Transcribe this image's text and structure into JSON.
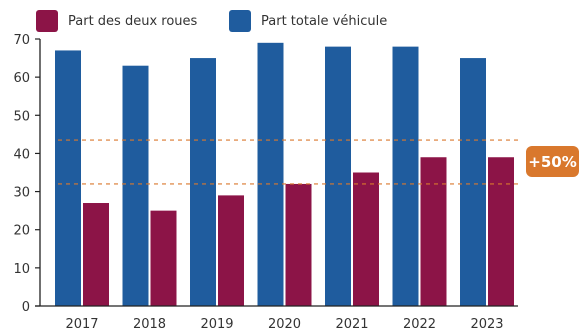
{
  "colors": {
    "two_wheel": "#8C1447",
    "vehicle": "#1F5C9E",
    "annotation": "#D9782D",
    "axis": "#222222"
  },
  "chart_data": {
    "type": "bar",
    "categories": [
      "2017",
      "2018",
      "2019",
      "2020",
      "2021",
      "2022",
      "2023"
    ],
    "series": [
      {
        "name": "Part des deux roues",
        "values": [
          27,
          25,
          29,
          32,
          35,
          39,
          39
        ]
      },
      {
        "name": "Part totale véhicule",
        "values": [
          67,
          63,
          65,
          69,
          68,
          68,
          65
        ]
      }
    ],
    "ylim": [
      0,
      70
    ],
    "yticks": [
      "0",
      "10",
      "20",
      "30",
      "40",
      "50",
      "60",
      "70"
    ],
    "grid": false,
    "legend_position": "top-left",
    "reference_lines": [
      32,
      43.5
    ],
    "annotation": "+50%"
  }
}
